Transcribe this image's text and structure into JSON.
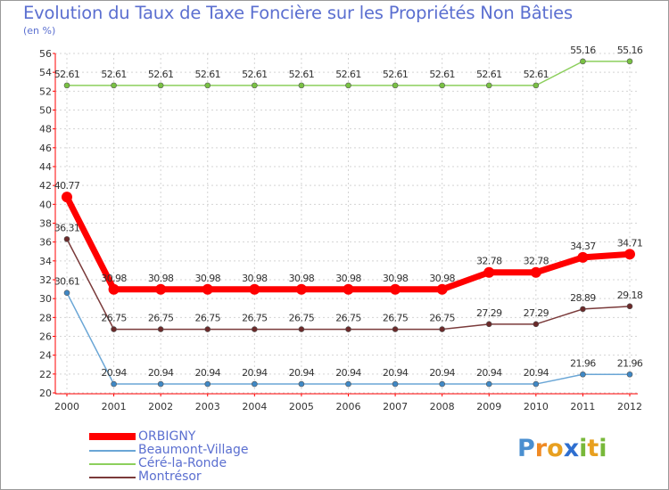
{
  "chart_data": {
    "type": "line",
    "title": "Evolution du Taux de Taxe Foncière sur les Propriétés Non Bâties",
    "unit_label": "(en %)",
    "xlabel": "",
    "ylabel": "",
    "ylim": [
      20,
      56
    ],
    "y_ticks": [
      20,
      22,
      24,
      26,
      28,
      30,
      32,
      34,
      36,
      38,
      40,
      42,
      44,
      46,
      48,
      50,
      52,
      54,
      56
    ],
    "x": [
      "2000",
      "2001",
      "2002",
      "2003",
      "2004",
      "2005",
      "2006",
      "2007",
      "2008",
      "2009",
      "2010",
      "2011",
      "2012"
    ],
    "series": [
      {
        "name": "Céré-la-Ronde",
        "color": "#8ccf5c",
        "marker": "#79c143",
        "width": 1.5,
        "values": [
          52.61,
          52.61,
          52.61,
          52.61,
          52.61,
          52.61,
          52.61,
          52.61,
          52.61,
          52.61,
          52.61,
          55.16,
          55.16
        ],
        "labels": [
          "52.61",
          "52.61",
          "52.61",
          "52.61",
          "52.61",
          "52.61",
          "52.61",
          "52.61",
          "52.61",
          "52.61",
          "52.61",
          "55.16",
          "55.16"
        ]
      },
      {
        "name": "Beaumont-Village",
        "color": "#6aa6d6",
        "marker": "#3f88c5",
        "width": 1.5,
        "values": [
          30.61,
          20.94,
          20.94,
          20.94,
          20.94,
          20.94,
          20.94,
          20.94,
          20.94,
          20.94,
          20.94,
          21.96,
          21.96
        ],
        "labels": [
          "30.61",
          "20.94",
          "20.94",
          "20.94",
          "20.94",
          "20.94",
          "20.94",
          "20.94",
          "20.94",
          "20.94",
          "20.94",
          "21.96",
          "21.96"
        ]
      },
      {
        "name": "Montrésor",
        "color": "#7a3a3a",
        "marker": "#6b2a2a",
        "width": 1.5,
        "values": [
          36.31,
          26.75,
          26.75,
          26.75,
          26.75,
          26.75,
          26.75,
          26.75,
          26.75,
          27.29,
          27.29,
          28.89,
          29.18
        ],
        "labels": [
          "36.31",
          "26.75",
          "26.75",
          "26.75",
          "26.75",
          "26.75",
          "26.75",
          "26.75",
          "26.75",
          "27.29",
          "27.29",
          "28.89",
          "29.18"
        ]
      },
      {
        "name": "ORBIGNY",
        "color": "#ff0000",
        "marker": "#ff0000",
        "width": 7,
        "values": [
          40.77,
          30.98,
          30.98,
          30.98,
          30.98,
          30.98,
          30.98,
          30.98,
          30.98,
          32.78,
          32.78,
          34.37,
          34.71
        ],
        "labels": [
          "40.77",
          "30.98",
          "30.98",
          "30.98",
          "30.98",
          "30.98",
          "30.98",
          "30.98",
          "30.98",
          "32.78",
          "32.78",
          "34.37",
          "34.71"
        ]
      }
    ],
    "legend_position": "bottom-left",
    "grid": true
  },
  "legend": [
    {
      "name": "ORBIGNY",
      "color": "#ff0000"
    },
    {
      "name": "Beaumont-Village",
      "color": "#6aa6d6"
    },
    {
      "name": "Céré-la-Ronde",
      "color": "#8ccf5c"
    },
    {
      "name": "Montrésor",
      "color": "#7a3a3a"
    }
  ],
  "brand": {
    "letters": [
      "P",
      "r",
      "o",
      "x",
      "i",
      "t",
      "i"
    ],
    "colors": [
      "#4a8fd0",
      "#f08a24",
      "#e8a020",
      "#2f6fd0",
      "#78b83a",
      "#e8a020",
      "#78b83a"
    ]
  }
}
